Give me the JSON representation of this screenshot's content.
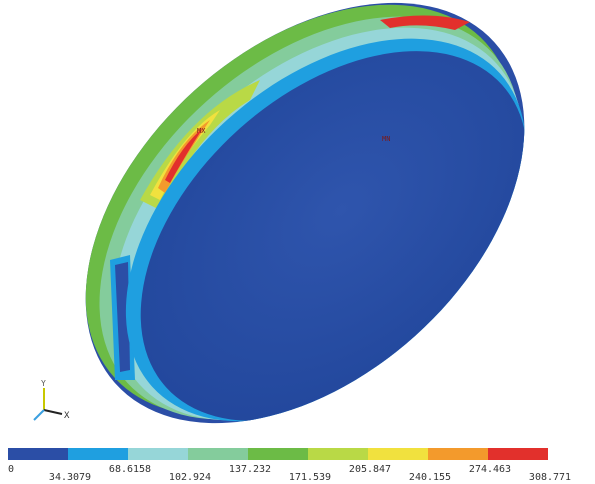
{
  "markers": {
    "max": "MX",
    "min": "MN"
  },
  "triad": {
    "y": "Y",
    "x": "X"
  },
  "legend": {
    "levels": [
      0,
      34.3079,
      68.6158,
      102.924,
      137.232,
      171.539,
      205.847,
      240.155,
      274.463,
      308.771
    ],
    "colors": [
      "#2b4ea6",
      "#1f9fe0",
      "#96d6d8",
      "#84cc9c",
      "#6cbb46",
      "#b9d946",
      "#f1e13e",
      "#f39a2c",
      "#e2302c"
    ]
  }
}
